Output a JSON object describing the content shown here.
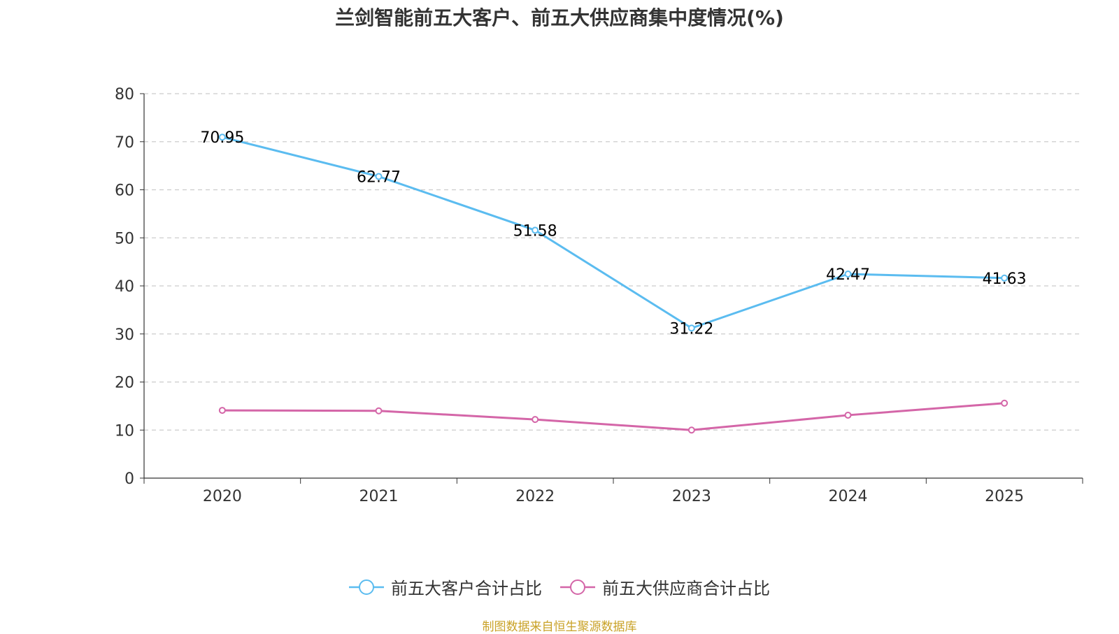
{
  "title": "兰剑智能前五大客户、前五大供应商集中度情况(%)",
  "source": "制图数据来自恒生聚源数据库",
  "colors": {
    "customers": "#5bbcf0",
    "suppliers": "#d466a8",
    "grid": "#cccccc",
    "axis": "#333333"
  },
  "chart_data": {
    "type": "line",
    "title": "兰剑智能前五大客户、前五大供应商集中度情况(%)",
    "xlabel": "",
    "ylabel": "",
    "categories": [
      "2020",
      "2021",
      "2022",
      "2023",
      "2024",
      "2025"
    ],
    "ylim": [
      0,
      80
    ],
    "yticks": [
      0,
      10,
      20,
      30,
      40,
      50,
      60,
      70,
      80
    ],
    "grid": true,
    "legend_position": "bottom",
    "series": [
      {
        "name": "前五大客户合计占比",
        "values": [
          70.95,
          62.77,
          51.58,
          31.22,
          42.47,
          41.63
        ],
        "labels": [
          "70.95",
          "62.77",
          "51.58",
          "31.22",
          "42.47",
          "41.63"
        ],
        "color": "#5bbcf0"
      },
      {
        "name": "前五大供应商合计占比",
        "values": [
          14.1,
          14.0,
          12.2,
          10.0,
          13.1,
          15.6
        ],
        "labels": null,
        "color": "#d466a8"
      }
    ]
  }
}
